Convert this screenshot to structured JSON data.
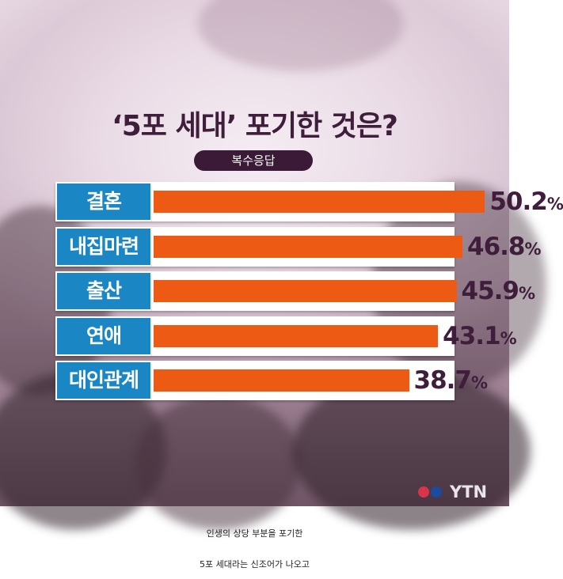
{
  "chart_data": {
    "type": "bar",
    "orientation": "horizontal",
    "title": "‘5포 세대’ 포기한 것은?",
    "note": "복수응답",
    "categories": [
      "결혼",
      "내집마련",
      "출산",
      "연애",
      "대인관계"
    ],
    "values": [
      50.2,
      46.8,
      45.9,
      43.1,
      38.7
    ],
    "value_labels": [
      "50.2",
      "46.8",
      "45.9",
      "43.1",
      "38.7"
    ],
    "unit": "%",
    "xlim": [
      0,
      60
    ],
    "grid": false,
    "colors": {
      "bar": "#ec5a14",
      "label_bg": "#1a86c4",
      "value_text": "#3f1e3c"
    }
  },
  "logo": {
    "text": "YTN",
    "dot_colors": [
      "#d8344a",
      "#1a4ba0"
    ]
  },
  "captions": [
    "인생의 상당 부분을 포기한",
    "5포 세대라는 신조어가 나오고"
  ]
}
